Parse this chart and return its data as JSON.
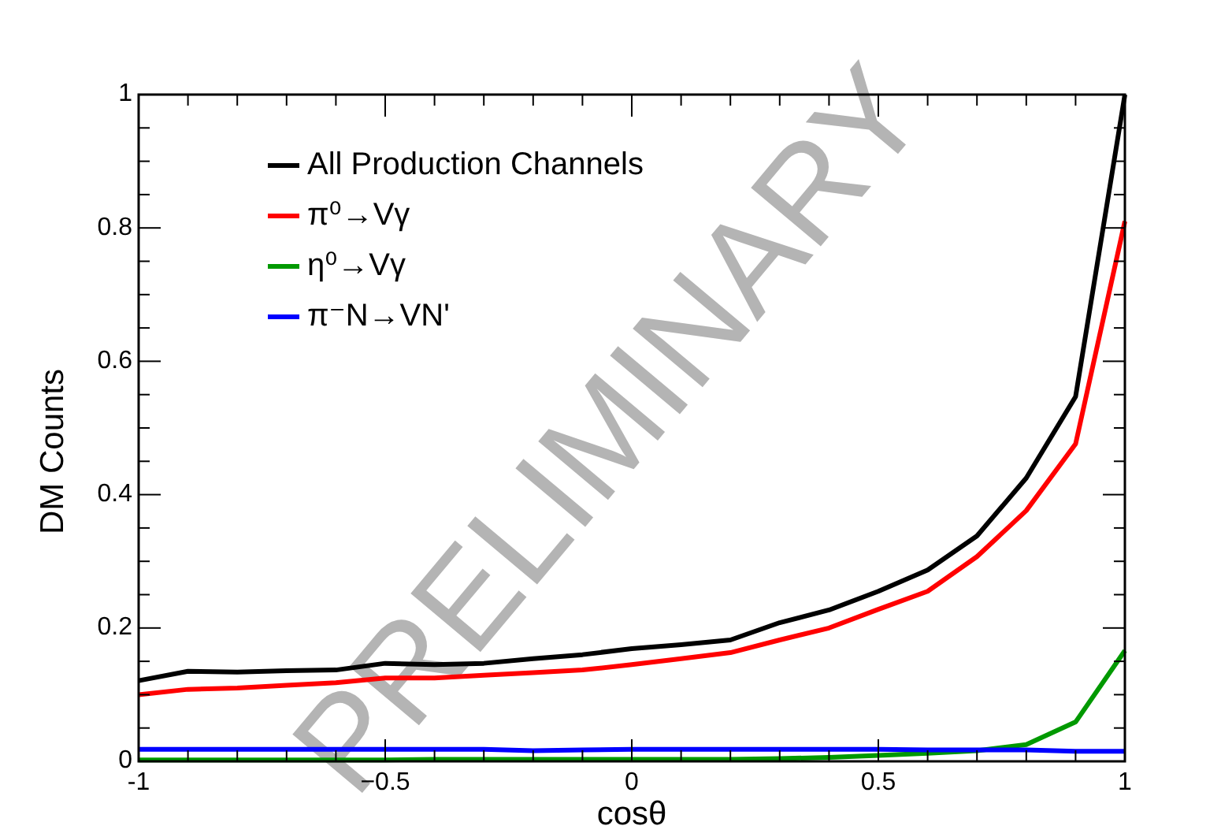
{
  "chart_data": {
    "type": "line",
    "xlabel": "cosθ",
    "ylabel": "DM Counts",
    "annotations": [
      "PRELIMINARY"
    ],
    "x": [
      -1,
      -0.9,
      -0.8,
      -0.7,
      -0.6,
      -0.5,
      -0.4,
      -0.3,
      -0.2,
      -0.1,
      0,
      0.1,
      0.2,
      0.3,
      0.4,
      0.5,
      0.6,
      0.7,
      0.8,
      0.9,
      1
    ],
    "series": [
      {
        "name": "All Production Channels",
        "color": "#000000",
        "values": [
          0.121,
          0.135,
          0.134,
          0.136,
          0.137,
          0.147,
          0.145,
          0.147,
          0.154,
          0.16,
          0.169,
          0.175,
          0.182,
          0.208,
          0.227,
          0.255,
          0.287,
          0.338,
          0.425,
          0.547,
          1.0
        ]
      },
      {
        "name": "π⁰→Vγ",
        "color": "#ff0000",
        "values": [
          0.1,
          0.108,
          0.11,
          0.114,
          0.118,
          0.125,
          0.125,
          0.129,
          0.133,
          0.137,
          0.145,
          0.154,
          0.163,
          0.182,
          0.2,
          0.228,
          0.255,
          0.307,
          0.376,
          0.476,
          0.81
        ]
      },
      {
        "name": "η⁰→Vγ",
        "color": "#009900",
        "values": [
          0.002,
          0.002,
          0.002,
          0.002,
          0.002,
          0.002,
          0.003,
          0.003,
          0.003,
          0.003,
          0.003,
          0.003,
          0.003,
          0.004,
          0.006,
          0.009,
          0.012,
          0.016,
          0.025,
          0.059,
          0.166
        ]
      },
      {
        "name": "π⁻N→VN'",
        "color": "#0000ff",
        "values": [
          0.018,
          0.018,
          0.018,
          0.018,
          0.018,
          0.018,
          0.018,
          0.018,
          0.016,
          0.017,
          0.018,
          0.018,
          0.018,
          0.018,
          0.018,
          0.018,
          0.017,
          0.017,
          0.017,
          0.015,
          0.015
        ]
      }
    ],
    "xlim": [
      -1,
      1
    ],
    "ylim": [
      0,
      1
    ],
    "xticks": [
      -1,
      {
        "value": -0.9,
        "label": null
      },
      {
        "value": -0.8,
        "label": null
      },
      {
        "value": -0.7,
        "label": null
      },
      {
        "value": -0.6,
        "label": null
      },
      {
        "value": -0.5,
        "label": "−0.5"
      },
      {
        "value": -0.4,
        "label": null
      },
      {
        "value": -0.3,
        "label": null
      },
      {
        "value": -0.2,
        "label": null
      },
      {
        "value": -0.1,
        "label": null
      },
      0,
      {
        "value": 0.1,
        "label": null
      },
      {
        "value": 0.2,
        "label": null
      },
      {
        "value": 0.3,
        "label": null
      },
      {
        "value": 0.4,
        "label": null
      },
      0.5,
      {
        "value": 0.6,
        "label": null
      },
      {
        "value": 0.7,
        "label": null
      },
      {
        "value": 0.8,
        "label": null
      },
      {
        "value": 0.9,
        "label": null
      },
      1
    ],
    "yticks": [
      0,
      {
        "value": 0.05,
        "label": null
      },
      {
        "value": 0.1,
        "label": null
      },
      {
        "value": 0.15,
        "label": null
      },
      0.2,
      {
        "value": 0.25,
        "label": null
      },
      {
        "value": 0.3,
        "label": null
      },
      {
        "value": 0.35,
        "label": null
      },
      0.4,
      {
        "value": 0.45,
        "label": null
      },
      {
        "value": 0.5,
        "label": null
      },
      {
        "value": 0.55,
        "label": null
      },
      0.6,
      {
        "value": 0.65,
        "label": null
      },
      {
        "value": 0.7,
        "label": null
      },
      {
        "value": 0.75,
        "label": null
      },
      0.8,
      {
        "value": 0.85,
        "label": null
      },
      {
        "value": 0.9,
        "label": null
      },
      {
        "value": 0.95,
        "label": null
      },
      1
    ],
    "grid": false,
    "legend": "top left",
    "marker": "none",
    "line_style": "solid"
  }
}
